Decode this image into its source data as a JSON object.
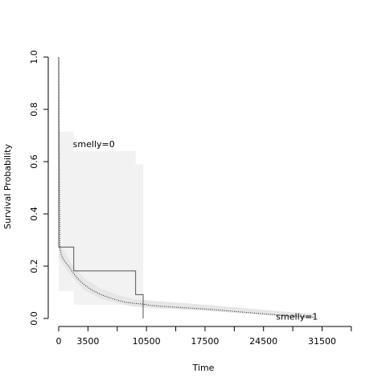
{
  "chart_data": {
    "type": "line",
    "title": "",
    "xlabel": "Time",
    "ylabel": "Survival Probability",
    "xlim": [
      0,
      35000
    ],
    "ylim": [
      0,
      1
    ],
    "x_ticks": [
      0,
      3500,
      10500,
      17500,
      24500,
      31500
    ],
    "x_tick_labels": [
      "0",
      "3500",
      "10500",
      "17500",
      "24500",
      "31500"
    ],
    "x_minor_ticks": [
      7000,
      14000,
      21000,
      28000,
      35000
    ],
    "y_ticks": [
      0,
      0.2,
      0.4,
      0.6,
      0.8,
      1.0
    ],
    "y_tick_labels": [
      "0.0",
      "0.2",
      "0.4",
      "0.6",
      "0.8",
      "1.0"
    ],
    "grid": false,
    "annotations": [
      {
        "label": "smelly=0",
        "x": 1700,
        "y": 0.655
      },
      {
        "label": "smelly=1",
        "x": 26000,
        "y": -0.005
      }
    ],
    "series": [
      {
        "name": "smelly=0",
        "style": "step-solid",
        "color": "#555555",
        "x": [
          0,
          0,
          1800,
          1800,
          9200,
          9200,
          10100,
          10100
        ],
        "y": [
          1.0,
          0.273,
          0.273,
          0.182,
          0.182,
          0.091,
          0.091,
          0.0
        ]
      },
      {
        "name": "smelly=1",
        "style": "dotted",
        "color": "#333333",
        "x": [
          0,
          150,
          300,
          500,
          800,
          1200,
          1600,
          2200,
          3000,
          4000,
          5000,
          6000,
          7000,
          8000,
          9000,
          10000,
          11000,
          12000,
          13500,
          15000,
          16500,
          18000,
          19500,
          21000,
          22500,
          24000,
          25500,
          27000,
          28500,
          30000,
          30600
        ],
        "y": [
          1.0,
          0.27,
          0.245,
          0.23,
          0.215,
          0.2,
          0.18,
          0.155,
          0.13,
          0.108,
          0.092,
          0.08,
          0.07,
          0.062,
          0.058,
          0.055,
          0.05,
          0.047,
          0.044,
          0.041,
          0.038,
          0.035,
          0.031,
          0.027,
          0.023,
          0.019,
          0.015,
          0.011,
          0.008,
          0.005,
          0.004
        ]
      }
    ],
    "confidence_bands": [
      {
        "name": "smelly=0 CI",
        "color": "#f2f2f2",
        "segments": [
          {
            "x0": 0,
            "x1": 1800,
            "lower": 0.105,
            "upper": 0.715
          },
          {
            "x0": 1800,
            "x1": 9200,
            "lower": 0.052,
            "upper": 0.64
          },
          {
            "x0": 9200,
            "x1": 10100,
            "lower": 0.052,
            "upper": 0.59
          }
        ]
      },
      {
        "name": "smelly=1 CI",
        "color": "#e6e6e6",
        "x": [
          0,
          300,
          800,
          1600,
          3000,
          5000,
          7000,
          9000,
          11000,
          13500,
          16500,
          19500,
          22500,
          25500,
          28500,
          30600
        ],
        "lower": [
          0.24,
          0.215,
          0.19,
          0.16,
          0.11,
          0.075,
          0.058,
          0.045,
          0.04,
          0.036,
          0.031,
          0.025,
          0.018,
          0.011,
          0.005,
          0.002
        ],
        "upper": [
          0.3,
          0.275,
          0.25,
          0.205,
          0.155,
          0.115,
          0.09,
          0.075,
          0.068,
          0.062,
          0.055,
          0.047,
          0.039,
          0.03,
          0.022,
          0.018
        ]
      }
    ]
  }
}
